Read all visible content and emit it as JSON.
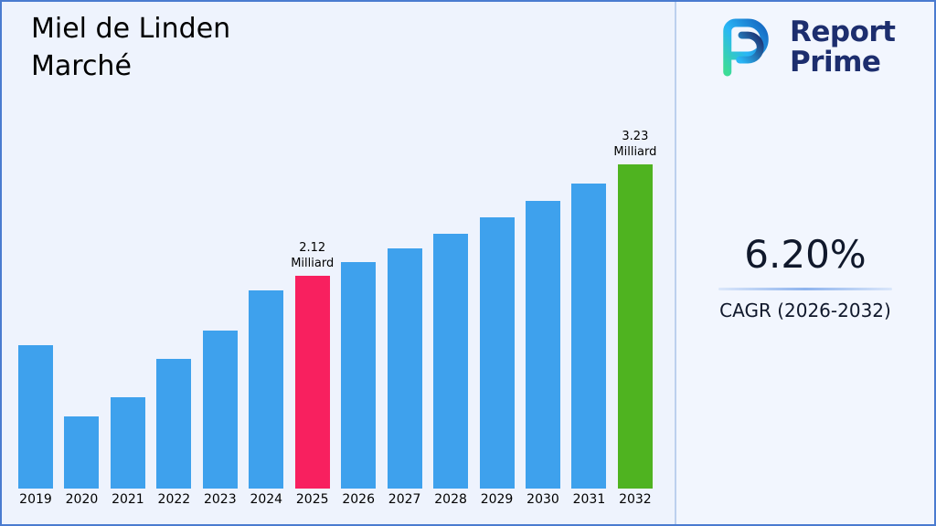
{
  "header": {
    "title_line1": "Miel de Linden",
    "title_line2": "Marché"
  },
  "brand": {
    "name_line1": "Report",
    "name_line2": "Prime"
  },
  "stats": {
    "cagr_value": "6.20%",
    "cagr_label": "CAGR (2026-2032)"
  },
  "colors": {
    "bar_default": "#3EA1ED",
    "bar_highlight_2025": "#F8205F",
    "bar_highlight_2032": "#4FB320",
    "brand_navy": "#1d2e6e",
    "background": "#eef3fd",
    "frame_border": "#4a7bd0"
  },
  "chart_data": {
    "type": "bar",
    "title": "Miel de Linden Marché",
    "unit": "Milliard",
    "xlabel": "",
    "ylabel": "",
    "grid": false,
    "legend": "none",
    "ylim": [
      0,
      3.6
    ],
    "categories": [
      "2019",
      "2020",
      "2021",
      "2022",
      "2023",
      "2024",
      "2025",
      "2026",
      "2027",
      "2028",
      "2029",
      "2030",
      "2031",
      "2032"
    ],
    "values": [
      1.43,
      0.72,
      0.91,
      1.29,
      1.57,
      1.97,
      2.12,
      2.25,
      2.39,
      2.54,
      2.7,
      2.86,
      3.04,
      3.23
    ],
    "bar_color": "#3EA1ED",
    "highlight_colors": {
      "2025": "#F8205F",
      "2032": "#4FB320"
    },
    "annotations": [
      {
        "category": "2025",
        "value": "2.12",
        "unit": "Milliard"
      },
      {
        "category": "2032",
        "value": "3.23",
        "unit": "Milliard"
      }
    ]
  }
}
